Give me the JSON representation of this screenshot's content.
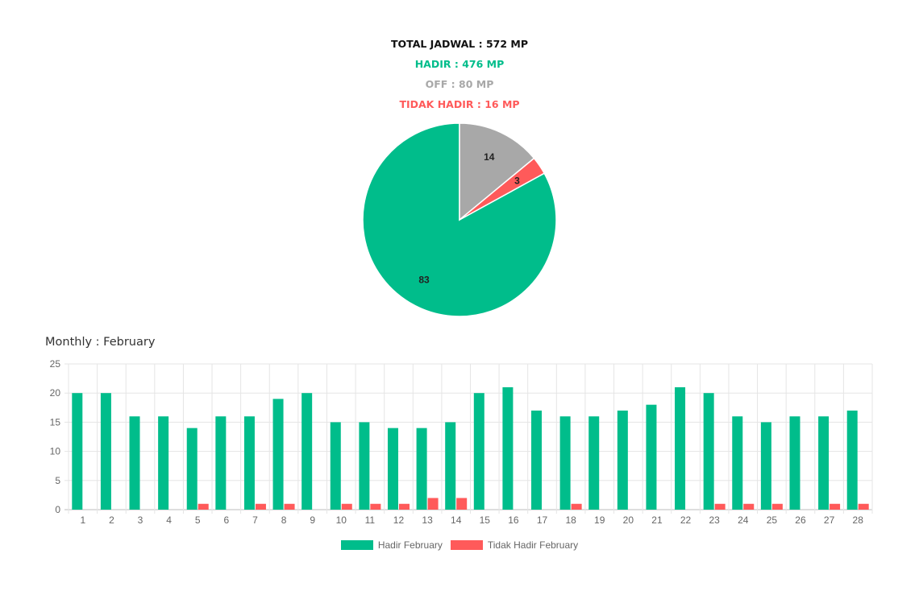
{
  "summary": {
    "total": "TOTAL JADWAL : 572 MP",
    "hadir": "HADIR : 476 MP",
    "off": "OFF : 80 MP",
    "tidak_hadir": "TIDAK HADIR : 16 MP"
  },
  "monthly_title": "Monthly : February",
  "colors": {
    "hadir": "#00bd8b",
    "tidak_hadir": "#ff5a5a",
    "off": "#a8a8a8"
  },
  "chart_data": [
    {
      "type": "pie",
      "slices": [
        {
          "label": "83",
          "value": 83,
          "color": "#00bd8b"
        },
        {
          "label": "3",
          "value": 3,
          "color": "#ff5a5a"
        },
        {
          "label": "14",
          "value": 14,
          "color": "#a8a8a8"
        }
      ]
    },
    {
      "type": "bar",
      "categories": [
        "1",
        "2",
        "3",
        "4",
        "5",
        "6",
        "7",
        "8",
        "9",
        "10",
        "11",
        "12",
        "13",
        "14",
        "15",
        "16",
        "17",
        "18",
        "19",
        "20",
        "21",
        "22",
        "23",
        "24",
        "25",
        "26",
        "27",
        "28"
      ],
      "series": [
        {
          "name": "Hadir February",
          "color": "#00bd8b",
          "values": [
            20,
            20,
            16,
            16,
            14,
            16,
            16,
            19,
            20,
            15,
            15,
            14,
            14,
            15,
            20,
            21,
            17,
            16,
            16,
            17,
            18,
            21,
            20,
            16,
            15,
            16,
            16,
            17
          ]
        },
        {
          "name": "Tidak Hadir February",
          "color": "#ff5a5a",
          "values": [
            0,
            0,
            0,
            0,
            1,
            0,
            1,
            1,
            0,
            1,
            1,
            1,
            2,
            2,
            0,
            0,
            0,
            1,
            0,
            0,
            0,
            0,
            1,
            1,
            1,
            0,
            1,
            1
          ]
        }
      ],
      "ylim": [
        0,
        25
      ],
      "yticks": [
        0,
        5,
        10,
        15,
        20,
        25
      ],
      "grid": true,
      "legend": "bottom"
    }
  ]
}
